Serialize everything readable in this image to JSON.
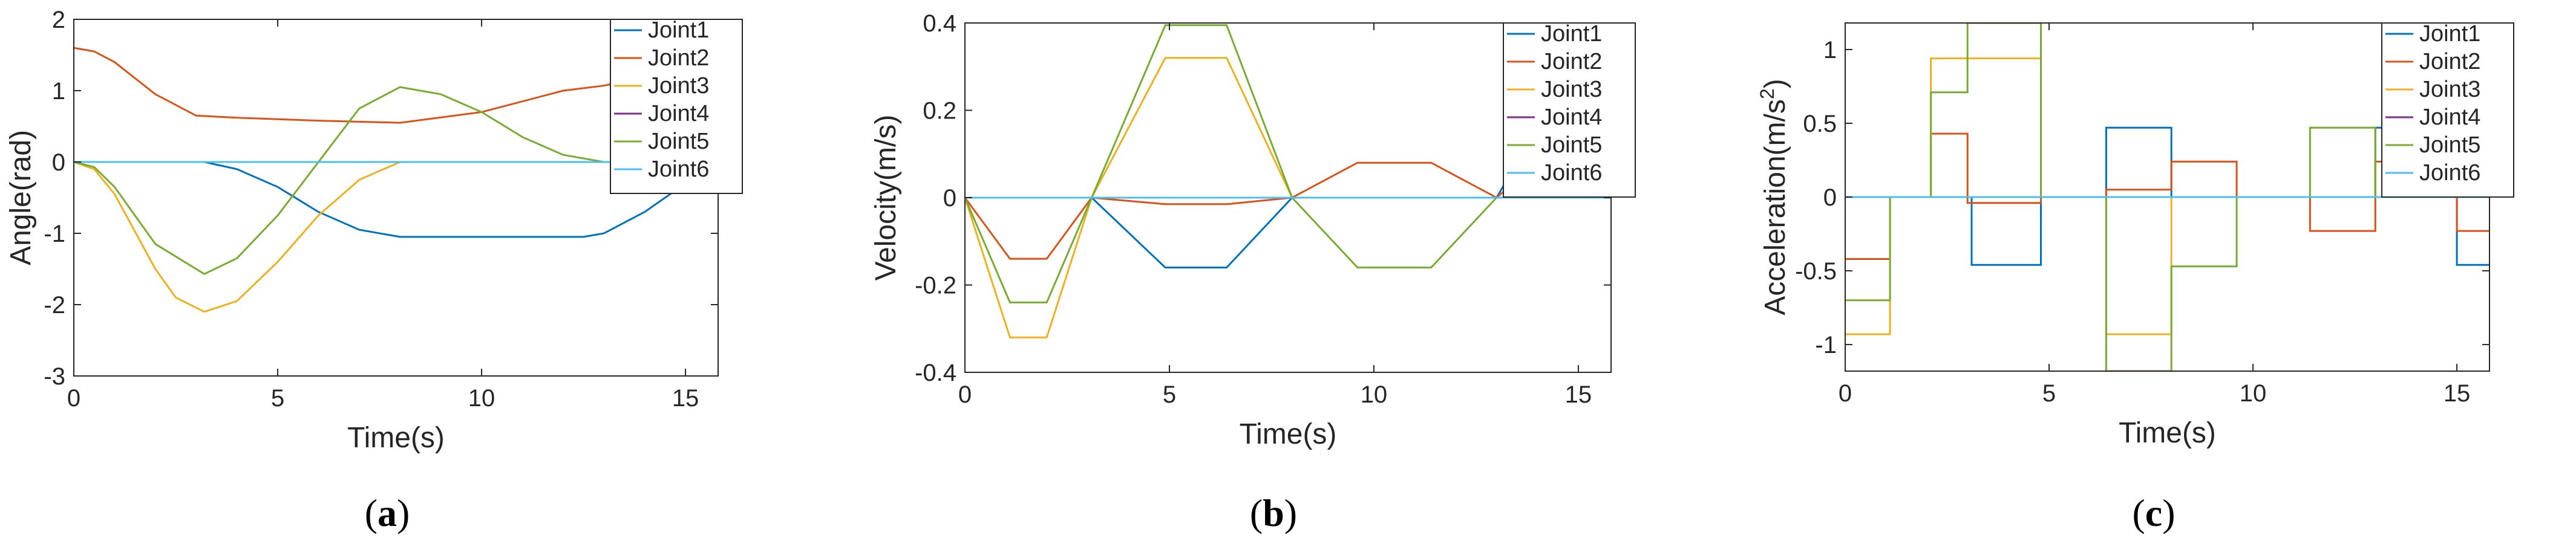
{
  "chart_data": [
    {
      "type": "line",
      "panel_label": "a",
      "xlabel": "Time(s)",
      "ylabel": "Angle(rad)",
      "xlim": [
        0,
        15.8
      ],
      "ylim": [
        -3,
        2
      ],
      "xticks": [
        0,
        5,
        10,
        15
      ],
      "yticks": [
        -3,
        -2,
        -1,
        0,
        1,
        2
      ],
      "legend": "top-right",
      "grid": false,
      "series": [
        {
          "name": "Joint1",
          "color": "#0072BD",
          "x": [
            0,
            3.2,
            4,
            5,
            6,
            7,
            8,
            9,
            12.5,
            13,
            14,
            15,
            15.8
          ],
          "y": [
            0,
            0,
            -0.1,
            -0.35,
            -0.7,
            -0.95,
            -1.05,
            -1.05,
            -1.05,
            -1.0,
            -0.7,
            -0.3,
            -0.05
          ]
        },
        {
          "name": "Joint2",
          "color": "#D95319",
          "x": [
            0,
            0.5,
            1,
            2,
            3,
            4,
            6,
            8,
            10,
            12,
            13,
            14,
            15,
            15.8
          ],
          "y": [
            1.6,
            1.55,
            1.4,
            0.95,
            0.65,
            0.62,
            0.58,
            0.55,
            0.7,
            1.0,
            1.07,
            1.2,
            1.42,
            1.58
          ]
        },
        {
          "name": "Joint3",
          "color": "#EDB120",
          "x": [
            0,
            0.5,
            1,
            2,
            2.5,
            3.2,
            4,
            5,
            6,
            7,
            8,
            15.8
          ],
          "y": [
            0,
            -0.1,
            -0.45,
            -1.5,
            -1.9,
            -2.1,
            -1.95,
            -1.4,
            -0.75,
            -0.25,
            0,
            0
          ]
        },
        {
          "name": "Joint4",
          "color": "#7E2F8E",
          "x": [
            0,
            15.8
          ],
          "y": [
            0,
            0
          ]
        },
        {
          "name": "Joint5",
          "color": "#77AC30",
          "x": [
            0,
            0.5,
            1,
            2,
            3.2,
            4,
            5,
            6,
            7,
            8,
            9,
            10,
            11,
            12,
            13,
            15.8
          ],
          "y": [
            0,
            -0.07,
            -0.35,
            -1.15,
            -1.57,
            -1.35,
            -0.75,
            0,
            0.75,
            1.05,
            0.95,
            0.7,
            0.35,
            0.1,
            0,
            0
          ]
        },
        {
          "name": "Joint6",
          "color": "#4DBEEE",
          "x": [
            0,
            15.8
          ],
          "y": [
            0,
            0
          ]
        }
      ]
    },
    {
      "type": "line",
      "panel_label": "b",
      "xlabel": "Time(s)",
      "ylabel": "Velocity(m/s)",
      "xlim": [
        0,
        15.8
      ],
      "ylim": [
        -0.4,
        0.4
      ],
      "xticks": [
        0,
        5,
        10,
        15
      ],
      "yticks": [
        -0.4,
        -0.2,
        0,
        0.2,
        0.4
      ],
      "legend": "top-right",
      "grid": false,
      "series": [
        {
          "name": "Joint1",
          "color": "#0072BD",
          "x": [
            0,
            3.1,
            4.9,
            6.4,
            8,
            13,
            14,
            15,
            15.8
          ],
          "y": [
            0,
            0,
            -0.16,
            -0.16,
            0,
            0,
            0.16,
            0.16,
            0.07
          ]
        },
        {
          "name": "Joint2",
          "color": "#D95319",
          "x": [
            0,
            1.1,
            2,
            3.1,
            4.9,
            6.4,
            8,
            9.6,
            11.4,
            13,
            14,
            15,
            15.8
          ],
          "y": [
            0,
            -0.14,
            -0.14,
            0,
            -0.015,
            -0.015,
            0,
            0.08,
            0.08,
            0,
            0.08,
            0.08,
            0.04
          ]
        },
        {
          "name": "Joint3",
          "color": "#EDB120",
          "x": [
            0,
            1.1,
            2,
            3.1,
            4.9,
            6.4,
            8,
            15.8
          ],
          "y": [
            0,
            -0.32,
            -0.32,
            0,
            0.32,
            0.32,
            0,
            0
          ]
        },
        {
          "name": "Joint4",
          "color": "#7E2F8E",
          "x": [
            0,
            15.8
          ],
          "y": [
            0,
            0
          ]
        },
        {
          "name": "Joint5",
          "color": "#77AC30",
          "x": [
            0,
            1.1,
            2,
            3.1,
            4.9,
            6.4,
            8,
            9.6,
            11.4,
            13,
            15.8
          ],
          "y": [
            0,
            -0.24,
            -0.24,
            0,
            0.395,
            0.395,
            0,
            -0.16,
            -0.16,
            0,
            0
          ]
        },
        {
          "name": "Joint6",
          "color": "#4DBEEE",
          "x": [
            0,
            15.8
          ],
          "y": [
            0,
            0
          ]
        }
      ]
    },
    {
      "type": "line",
      "panel_label": "c",
      "xlabel": "Time(s)",
      "ylabel_main": "Acceleration(m/s",
      "ylabel_sup": "2",
      "ylabel_close": ")",
      "xlim": [
        0,
        15.8
      ],
      "ylim": [
        -1.18,
        1.18
      ],
      "xticks": [
        0,
        5,
        10,
        15
      ],
      "yticks": [
        -1,
        -0.5,
        0,
        0.5,
        1
      ],
      "legend": "top-right",
      "grid": false,
      "series": [
        {
          "name": "Joint1",
          "color": "#0072BD",
          "x": [
            0,
            3.1,
            3.1,
            4.8,
            4.8,
            6.4,
            6.4,
            8,
            8,
            13,
            13,
            14,
            14,
            15,
            15,
            15.8
          ],
          "y": [
            0,
            0,
            -0.46,
            -0.46,
            0,
            0,
            0.47,
            0.47,
            0,
            0,
            0.47,
            0.47,
            0,
            0,
            -0.46,
            -0.46
          ]
        },
        {
          "name": "Joint2",
          "color": "#D95319",
          "x": [
            0,
            1.1,
            1.1,
            2.1,
            2.1,
            3.0,
            3.0,
            4.8,
            4.8,
            6.4,
            6.4,
            8.0,
            8.0,
            9.6,
            9.6,
            11.4,
            11.4,
            13.0,
            13.0,
            14.0,
            14.0,
            15.0,
            15.0,
            15.8
          ],
          "y": [
            -0.42,
            -0.42,
            0,
            0,
            0.43,
            0.43,
            -0.04,
            -0.04,
            0,
            0,
            0.05,
            0.05,
            0.24,
            0.24,
            0,
            0,
            -0.23,
            -0.23,
            0.24,
            0.24,
            0,
            0,
            -0.23,
            -0.23
          ]
        },
        {
          "name": "Joint3",
          "color": "#EDB120",
          "x": [
            0,
            1.1,
            1.1,
            2.1,
            2.1,
            3.0,
            3.0,
            4.8,
            4.8,
            6.4,
            6.4,
            8.0,
            8.0,
            15.8
          ],
          "y": [
            -0.93,
            -0.93,
            0,
            0,
            0.94,
            0.94,
            0.94,
            0.94,
            0,
            0,
            -0.93,
            -0.93,
            0,
            0
          ]
        },
        {
          "name": "Joint4",
          "color": "#7E2F8E",
          "x": [
            0,
            15.8
          ],
          "y": [
            0,
            0
          ]
        },
        {
          "name": "Joint5",
          "color": "#77AC30",
          "x": [
            0,
            1.1,
            1.1,
            2.1,
            2.1,
            3.0,
            3.0,
            4.8,
            4.8,
            6.4,
            6.4,
            8.0,
            8.0,
            9.6,
            9.6,
            11.4,
            11.4,
            13.0,
            13.0,
            15.8
          ],
          "y": [
            -0.7,
            -0.7,
            0,
            0,
            0.71,
            0.71,
            1.18,
            1.18,
            0,
            0,
            -1.18,
            -1.18,
            -0.47,
            -0.47,
            0,
            0,
            0.47,
            0.47,
            0,
            0
          ]
        },
        {
          "name": "Joint6",
          "color": "#4DBEEE",
          "x": [
            0,
            15.8
          ],
          "y": [
            0,
            0
          ]
        }
      ]
    }
  ]
}
